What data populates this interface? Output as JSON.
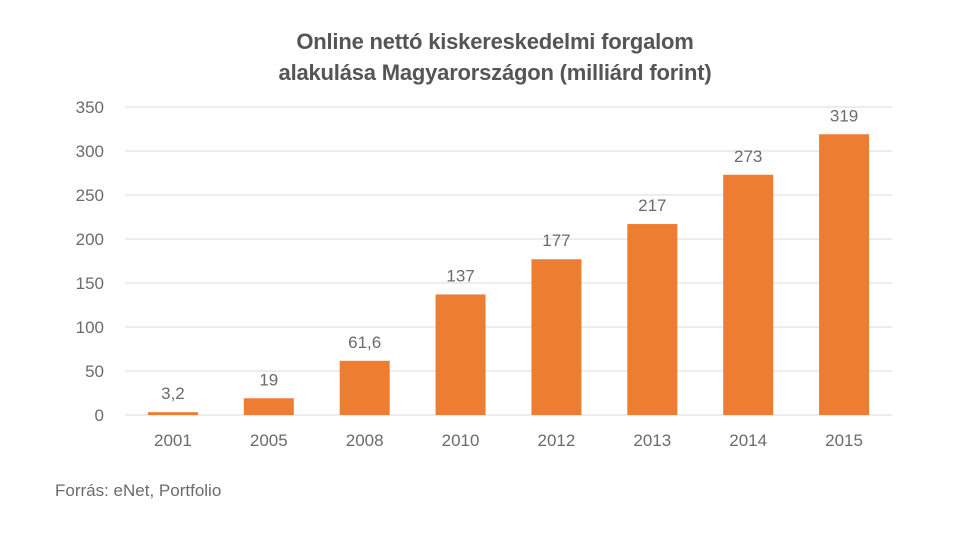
{
  "chart_data": {
    "type": "bar",
    "title_line1": "Online nettó kiskereskedelmi forgalom",
    "title_line2": "alakulása Magyarországon (milliárd forint)",
    "categories": [
      "2001",
      "2005",
      "2008",
      "2010",
      "2012",
      "2013",
      "2014",
      "2015"
    ],
    "values": [
      3.2,
      19,
      61.6,
      137,
      177,
      217,
      273,
      319
    ],
    "value_labels": [
      "3,2",
      "19",
      "61,6",
      "137",
      "177",
      "217",
      "273",
      "319"
    ],
    "yticks": [
      0,
      50,
      100,
      150,
      200,
      250,
      300,
      350
    ],
    "ylim": [
      0,
      350
    ],
    "grid": true,
    "bar_color": "#ed7d31",
    "source": "Forrás: eNet, Portfolio"
  }
}
